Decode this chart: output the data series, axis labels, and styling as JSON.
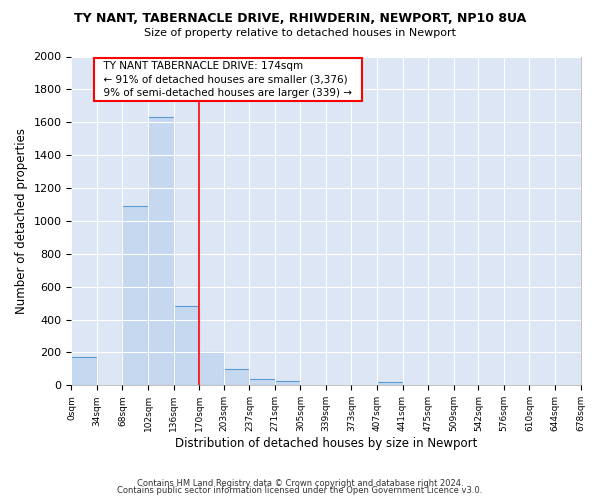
{
  "title1": "TY NANT, TABERNACLE DRIVE, RHIWDERIN, NEWPORT, NP10 8UA",
  "title2": "Size of property relative to detached houses in Newport",
  "xlabel": "Distribution of detached houses by size in Newport",
  "ylabel": "Number of detached properties",
  "bins": [
    0,
    34,
    68,
    102,
    136,
    170,
    203,
    237,
    271,
    305,
    339,
    373,
    407,
    441,
    475,
    509,
    542,
    576,
    610,
    644,
    678
  ],
  "counts": [
    170,
    0,
    1090,
    1630,
    480,
    200,
    100,
    40,
    25,
    0,
    0,
    0,
    20,
    0,
    0,
    0,
    0,
    0,
    0,
    0
  ],
  "bar_color": "#c5d8f0",
  "bar_edge_color": "#5b9bd5",
  "plot_bg_color": "#dce6f5",
  "figure_bg_color": "#ffffff",
  "grid_color": "#ffffff",
  "redline_x": 170,
  "ylim": [
    0,
    2000
  ],
  "yticks": [
    0,
    200,
    400,
    600,
    800,
    1000,
    1200,
    1400,
    1600,
    1800,
    2000
  ],
  "annotation_title": "TY NANT TABERNACLE DRIVE: 174sqm",
  "annotation_line1": "← 91% of detached houses are smaller (3,376)",
  "annotation_line2": "9% of semi-detached houses are larger (339) →",
  "footer1": "Contains HM Land Registry data © Crown copyright and database right 2024.",
  "footer2": "Contains public sector information licensed under the Open Government Licence v3.0."
}
